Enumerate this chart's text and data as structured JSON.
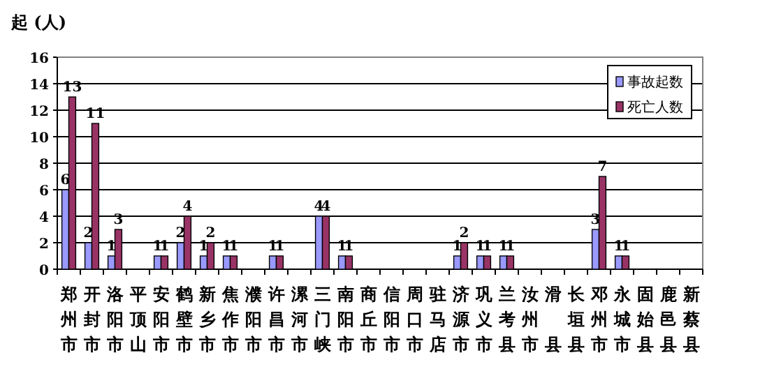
{
  "chart_data": {
    "type": "bar",
    "ylabel": "起 (人)",
    "categories": [
      "郑州市",
      "开封市",
      "洛阳市",
      "平顶山",
      "安阳市",
      "鹤壁市",
      "新乡市",
      "焦作市",
      "濮阳市",
      "许昌市",
      "漯河市",
      "三门峡",
      "南阳市",
      "商丘市",
      "信阳市",
      "周口市",
      "驻马店",
      "济源市",
      "巩义市",
      "兰考县",
      "汝州市",
      "滑县",
      "长垣县",
      "邓州市",
      "永城市",
      "固始县",
      "鹿邑县",
      "新蔡县"
    ],
    "series": [
      {
        "name": "事故起数",
        "color": "#9999ff",
        "values": [
          6,
          2,
          1,
          null,
          1,
          2,
          1,
          1,
          null,
          1,
          null,
          4,
          1,
          null,
          null,
          null,
          null,
          1,
          1,
          1,
          null,
          null,
          null,
          3,
          1,
          null,
          null,
          null
        ]
      },
      {
        "name": "死亡人数",
        "color": "#993366",
        "values": [
          13,
          11,
          3,
          null,
          1,
          4,
          2,
          1,
          null,
          1,
          null,
          4,
          1,
          null,
          null,
          null,
          null,
          2,
          1,
          1,
          null,
          null,
          null,
          7,
          1,
          null,
          null,
          null
        ]
      }
    ],
    "ylim": [
      0,
      16
    ],
    "yticks": [
      0,
      2,
      4,
      6,
      8,
      10,
      12,
      14,
      16
    ],
    "grid": "y",
    "legend": "top right",
    "data_labels": true
  }
}
